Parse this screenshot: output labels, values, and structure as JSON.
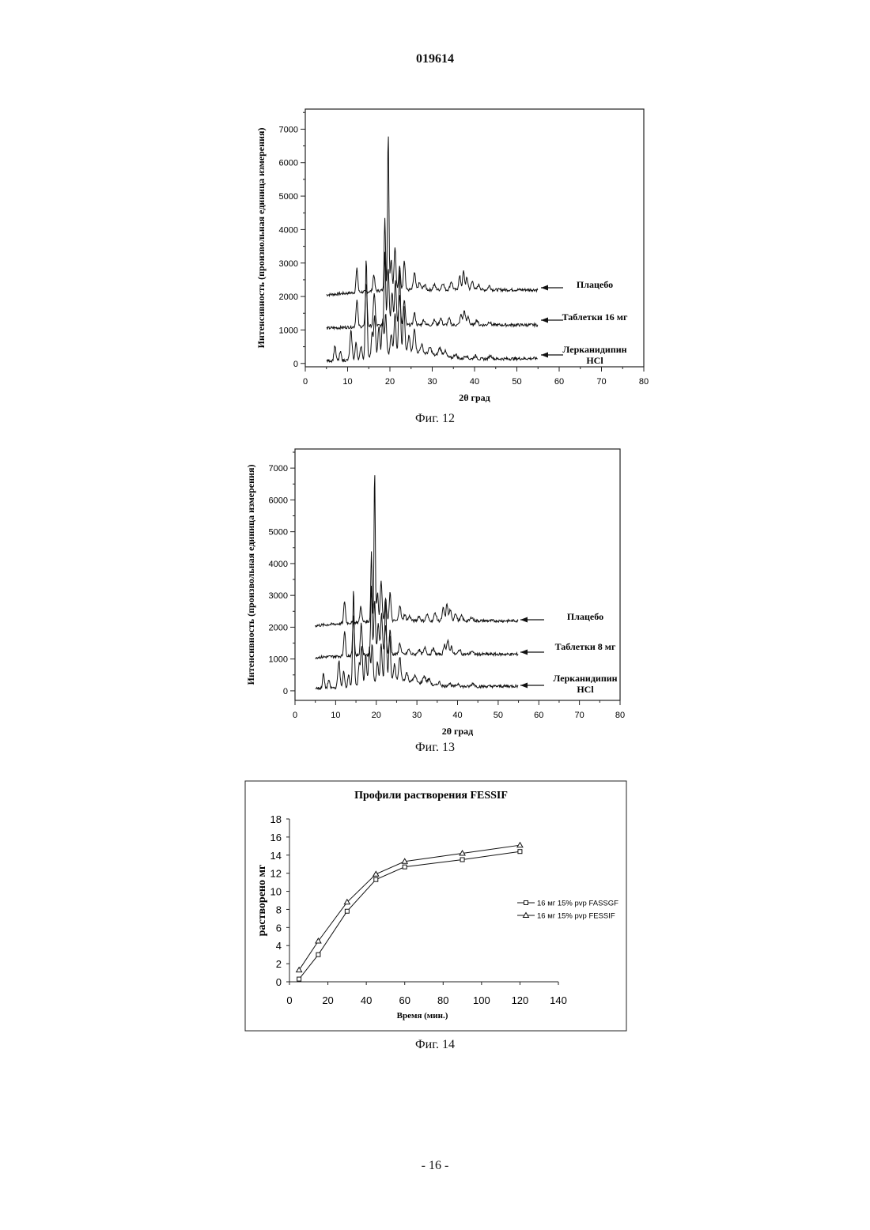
{
  "header": {
    "doc_number": "019614"
  },
  "footer": {
    "page_number": "- 16 -"
  },
  "chart_data": [
    {
      "type": "line",
      "caption": "Фиг. 12",
      "xlabel": "2θ град",
      "ylabel": "Интенсивность (произвольная единица измерения)",
      "xlim": [
        0,
        80
      ],
      "ylim": [
        -100,
        7600
      ],
      "x_ticks": [
        "0",
        "10",
        "20",
        "30",
        "40",
        "50",
        "60",
        "70",
        "80"
      ],
      "y_ticks": [
        "0",
        "1000",
        "2000",
        "3000",
        "4000",
        "5000",
        "6000",
        "7000"
      ],
      "series": [
        {
          "name": "Плацебо",
          "baseline": 2050,
          "end": 2200
        },
        {
          "name": "Таблетки 16 мг",
          "baseline": 1050,
          "end": 1150
        },
        {
          "name": "Лерканидипин HCl",
          "baseline": 80,
          "end": 150
        }
      ]
    },
    {
      "type": "line",
      "caption": "Фиг. 13",
      "xlabel": "2θ град",
      "ylabel": "Интенсивность (произвольная единица измерения)",
      "xlim": [
        0,
        80
      ],
      "ylim": [
        -300,
        7600
      ],
      "x_ticks": [
        "0",
        "10",
        "20",
        "30",
        "40",
        "50",
        "60",
        "70",
        "80"
      ],
      "y_ticks": [
        "0",
        "1000",
        "2000",
        "3000",
        "4000",
        "5000",
        "6000",
        "7000"
      ],
      "series": [
        {
          "name": "Плацебо",
          "baseline": 2050,
          "end": 2200
        },
        {
          "name": "Таблетки 8 мг",
          "baseline": 1050,
          "end": 1150
        },
        {
          "name": "Лерканидипин HCl",
          "baseline": 80,
          "end": 150
        }
      ]
    },
    {
      "type": "line",
      "caption": "Фиг. 14",
      "title": "Профили растворения FESSIF",
      "xlabel": "Время (мин.)",
      "ylabel": "растворено мг",
      "xlim": [
        0,
        140
      ],
      "ylim": [
        0,
        18
      ],
      "x_ticks": [
        "0",
        "20",
        "40",
        "60",
        "80",
        "100",
        "120",
        "140"
      ],
      "y_ticks": [
        "0",
        "2",
        "4",
        "6",
        "8",
        "10",
        "12",
        "14",
        "16",
        "18"
      ],
      "x": [
        5,
        15,
        30,
        45,
        60,
        90,
        120
      ],
      "series": [
        {
          "name": "16 мг 15% pvp FASSGF",
          "marker": "square",
          "values": [
            0.3,
            3.0,
            7.8,
            11.3,
            12.7,
            13.5,
            14.4
          ]
        },
        {
          "name": "16 мг 15% pvp FESSIF",
          "marker": "triangle",
          "values": [
            1.3,
            4.5,
            8.8,
            11.9,
            13.3,
            14.2,
            15.1
          ]
        }
      ]
    }
  ]
}
